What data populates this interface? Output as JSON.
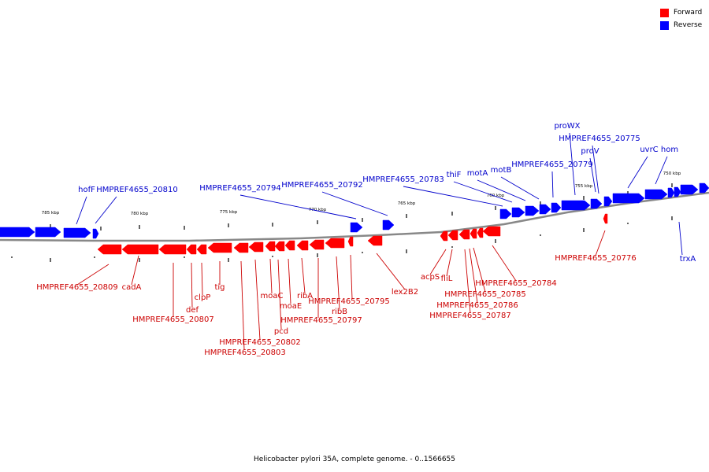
{
  "legend": [
    {
      "label": "Forward",
      "color": "#ff0000"
    },
    {
      "label": "Reverse",
      "color": "#0000ff"
    }
  ],
  "caption": "Helicobacter pylori 35A, complete genome. - 0..1566655",
  "colors": {
    "forward": "#ff0000",
    "reverse": "#0000ff",
    "forward_label": "#cc0000",
    "reverse_label": "#0000cc",
    "backbone": "#888888"
  },
  "ticks": [
    "785 kbp",
    "780 kbp",
    "775 kbp",
    "770 kbp",
    "765 kbp",
    "760 kbp",
    "755 kbp",
    "750 kbp"
  ],
  "genes": {
    "reverse": [
      "hofF",
      "HMPREF4655_20810",
      "HMPREF4655_20794",
      "HMPREF4655_20792",
      "HMPREF4655_20783",
      "thiF",
      "motA",
      "motB",
      "HMPREF4655_20779",
      "proWX",
      "HMPREF4655_20775",
      "proV",
      "uvrC",
      "hom",
      "trxA"
    ],
    "forward": [
      "HMPREF4655_20809",
      "cadA",
      "HMPREF4655_20807",
      "def",
      "clpP",
      "tig",
      "HMPREF4655_20803",
      "HMPREF4655_20802",
      "moaC",
      "pcd",
      "moaE",
      "ribA",
      "HMPREF4655_20797",
      "ribB",
      "HMPREF4655_20795",
      "lex2B2",
      "acpS",
      "fliL",
      "HMPREF4655_20787",
      "HMPREF4655_20786",
      "HMPREF4655_20785",
      "HMPREF4655_20784",
      "HMPREF4655_20776"
    ]
  }
}
